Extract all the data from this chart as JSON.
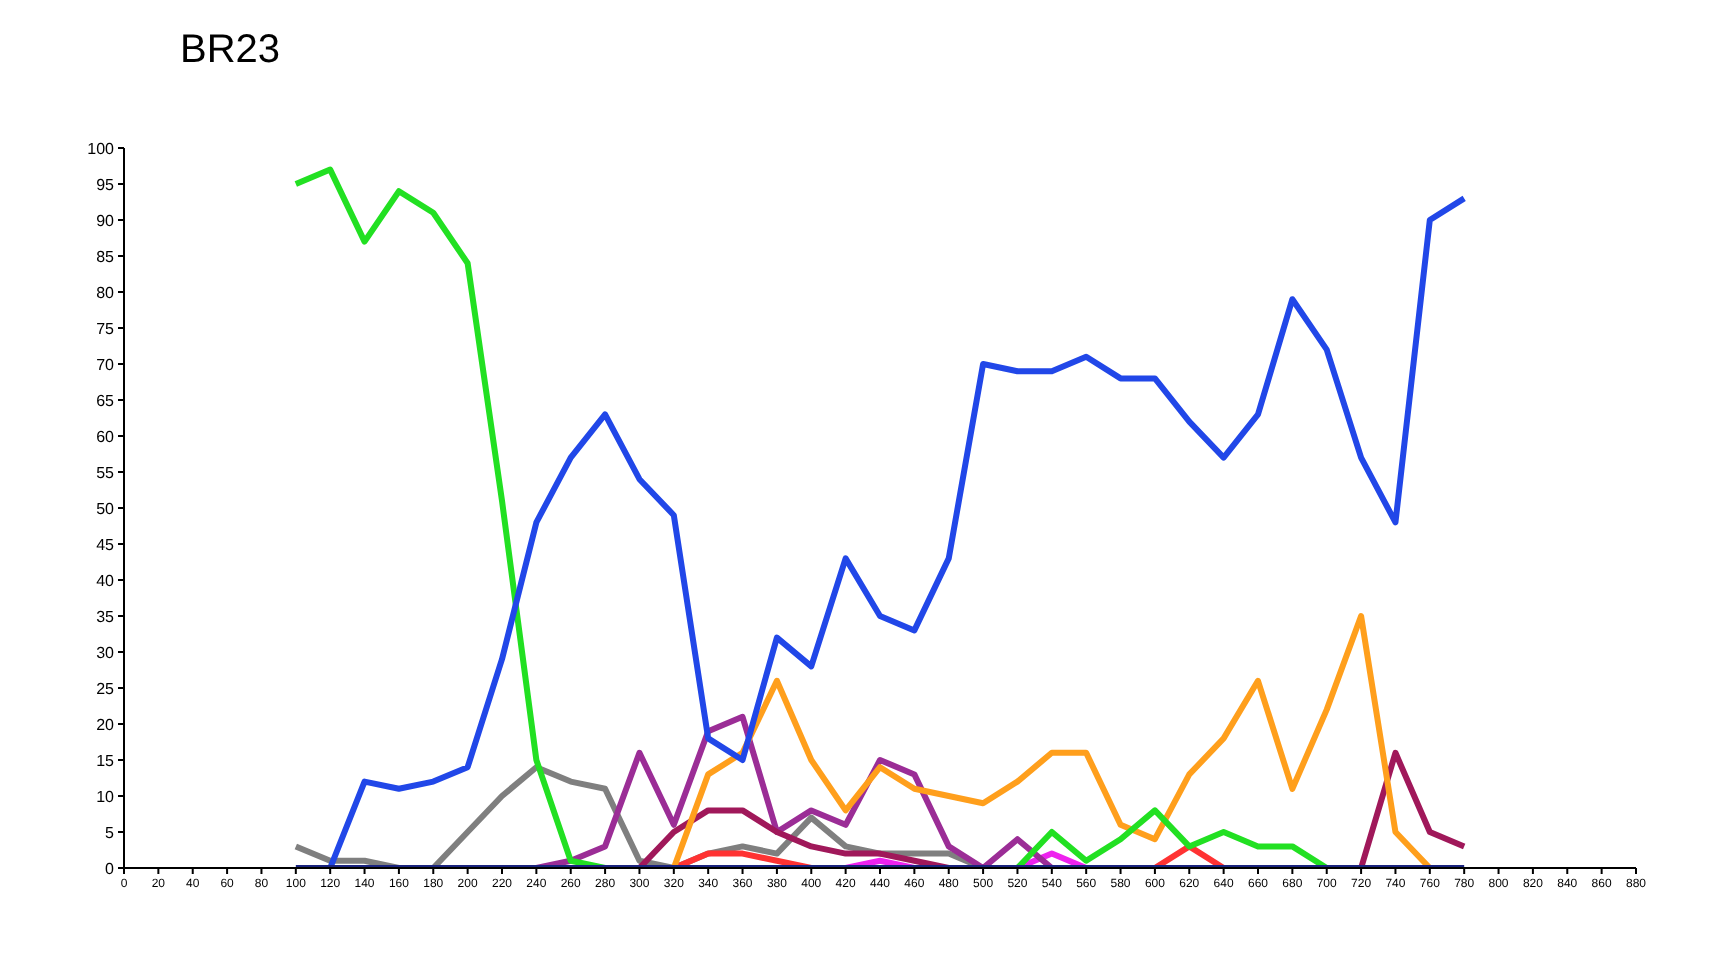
{
  "chart_data": {
    "type": "line",
    "title": "BR23",
    "x": [
      100,
      120,
      140,
      160,
      180,
      200,
      220,
      240,
      260,
      280,
      300,
      320,
      340,
      360,
      380,
      400,
      420,
      440,
      460,
      480,
      500,
      520,
      540,
      560,
      580,
      600,
      620,
      640,
      660,
      680,
      700,
      720,
      740,
      760,
      780
    ],
    "series": [
      {
        "color": "#7f7f7f",
        "values": [
          3,
          1,
          1,
          0,
          0,
          5,
          10,
          14,
          12,
          11,
          1,
          0,
          2,
          3,
          2,
          7,
          3,
          2,
          2,
          2,
          0,
          null,
          null,
          null,
          null,
          null,
          null,
          null,
          null,
          null,
          null,
          null,
          null,
          null,
          null
        ]
      },
      {
        "color": "#ff3333",
        "values": [
          null,
          null,
          null,
          null,
          null,
          null,
          null,
          null,
          null,
          null,
          null,
          0,
          2,
          2,
          1,
          0,
          null,
          null,
          null,
          null,
          null,
          null,
          null,
          null,
          null,
          0,
          3,
          0,
          null,
          null,
          null,
          null,
          null,
          null,
          null
        ]
      },
      {
        "color": "#ee22ee",
        "values": [
          null,
          null,
          null,
          null,
          null,
          null,
          null,
          null,
          null,
          null,
          null,
          null,
          null,
          null,
          null,
          null,
          0,
          1,
          0,
          null,
          null,
          0,
          2,
          0,
          null,
          null,
          null,
          null,
          null,
          null,
          null,
          null,
          null,
          null,
          null
        ]
      },
      {
        "color": "#9b2d96",
        "values": [
          null,
          null,
          null,
          null,
          null,
          null,
          null,
          0,
          1,
          3,
          16,
          6,
          19,
          21,
          5,
          8,
          6,
          15,
          13,
          3,
          0,
          4,
          0,
          null,
          null,
          null,
          null,
          null,
          null,
          null,
          null,
          null,
          null,
          null,
          null
        ]
      },
      {
        "color": "#a0185a",
        "values": [
          null,
          null,
          null,
          null,
          null,
          null,
          null,
          null,
          null,
          null,
          0,
          5,
          8,
          8,
          5,
          3,
          2,
          2,
          1,
          0,
          null,
          null,
          null,
          null,
          null,
          null,
          null,
          null,
          null,
          null,
          null,
          0,
          16,
          5,
          3
        ]
      },
      {
        "color": "#ff9f1c",
        "values": [
          null,
          null,
          null,
          null,
          null,
          null,
          null,
          null,
          null,
          null,
          null,
          0,
          13,
          16,
          26,
          15,
          8,
          14,
          11,
          10,
          9,
          12,
          16,
          16,
          6,
          4,
          13,
          18,
          26,
          11,
          22,
          35,
          5,
          0,
          null
        ]
      },
      {
        "color": "#22e022",
        "values": [
          95,
          97,
          87,
          94,
          91,
          84,
          51,
          15,
          1,
          0,
          null,
          null,
          null,
          null,
          null,
          null,
          null,
          null,
          null,
          null,
          null,
          0,
          5,
          1,
          4,
          8,
          3,
          5,
          3,
          3,
          0,
          null,
          null,
          null,
          null
        ]
      },
      {
        "color": "#2147e8",
        "values": [
          null,
          0,
          12,
          11,
          12,
          14,
          29,
          48,
          57,
          63,
          54,
          49,
          18,
          15,
          32,
          28,
          43,
          35,
          33,
          43,
          70,
          69,
          69,
          71,
          68,
          68,
          62,
          57,
          63,
          79,
          72,
          57,
          48,
          90,
          93
        ]
      },
      {
        "color": "#1a237e",
        "values": [
          0,
          0,
          0,
          0,
          0,
          0,
          0,
          0,
          0,
          0,
          0,
          0,
          0,
          0,
          0,
          0,
          0,
          0,
          0,
          0,
          0,
          0,
          0,
          0,
          0,
          0,
          0,
          0,
          0,
          0,
          0,
          0,
          0,
          0,
          0
        ]
      }
    ],
    "xlim": [
      0,
      880
    ],
    "xticks": [
      0,
      20,
      40,
      60,
      80,
      100,
      120,
      140,
      160,
      180,
      200,
      220,
      240,
      260,
      280,
      300,
      320,
      340,
      360,
      380,
      400,
      420,
      440,
      460,
      480,
      500,
      520,
      540,
      560,
      580,
      600,
      620,
      640,
      660,
      680,
      700,
      720,
      740,
      760,
      780,
      800,
      820,
      840,
      860,
      880
    ],
    "ylim": [
      0,
      100
    ],
    "yticks": [
      0,
      5,
      10,
      15,
      20,
      25,
      30,
      35,
      40,
      45,
      50,
      55,
      60,
      65,
      70,
      75,
      80,
      85,
      90,
      95,
      100
    ],
    "grid": false,
    "legend": false,
    "marker": "none",
    "line_style": "solid"
  }
}
